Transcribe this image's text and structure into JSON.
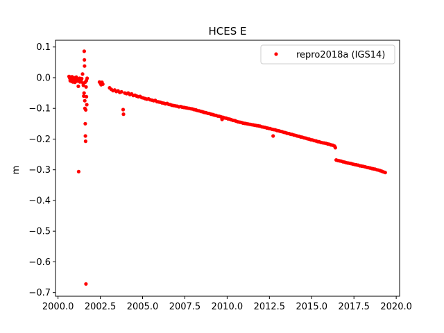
{
  "chart_data": {
    "type": "scatter",
    "title": "HCES E",
    "xlabel": "",
    "ylabel": "m",
    "xlim": [
      1999.85,
      2020.2
    ],
    "ylim": [
      -0.712,
      0.122
    ],
    "x_ticks": [
      2000.0,
      2002.5,
      2005.0,
      2007.5,
      2010.0,
      2012.5,
      2015.0,
      2017.5,
      2020.0
    ],
    "x_tick_labels": [
      "2000.0",
      "2002.5",
      "2005.0",
      "2007.5",
      "2010.0",
      "2012.5",
      "2015.0",
      "2017.5",
      "2020.0"
    ],
    "y_ticks": [
      0.1,
      0.0,
      -0.1,
      -0.2,
      -0.3,
      -0.4,
      -0.5,
      -0.6,
      -0.7
    ],
    "y_tick_labels": [
      "0.1",
      "0.0",
      "−0.1",
      "−0.2",
      "−0.3",
      "−0.4",
      "−0.5",
      "−0.6",
      "−0.7"
    ],
    "grid": false,
    "legend_position": "top-right",
    "color": "#ff0000",
    "series": [
      {
        "name": "repro2018a (IGS14)",
        "points": [
          [
            2000.65,
            0.004
          ],
          [
            2000.7,
            -0.002
          ],
          [
            2000.72,
            -0.01
          ],
          [
            2000.75,
            0.002
          ],
          [
            2000.78,
            -0.005
          ],
          [
            2000.8,
            -0.012
          ],
          [
            2000.83,
            0.003
          ],
          [
            2000.85,
            -0.008
          ],
          [
            2000.88,
            -0.014
          ],
          [
            2000.9,
            -0.002
          ],
          [
            2000.93,
            -0.01
          ],
          [
            2000.95,
            0.0
          ],
          [
            2000.98,
            -0.006
          ],
          [
            2001.0,
            -0.015
          ],
          [
            2001.03,
            -0.004
          ],
          [
            2001.05,
            -0.012
          ],
          [
            2001.08,
            0.002
          ],
          [
            2001.1,
            -0.008
          ],
          [
            2001.13,
            -0.003
          ],
          [
            2001.15,
            -0.011
          ],
          [
            2001.18,
            -0.005
          ],
          [
            2001.2,
            -0.028
          ],
          [
            2001.22,
            -0.306
          ],
          [
            2001.25,
            -0.009
          ],
          [
            2001.28,
            -0.002
          ],
          [
            2001.3,
            -0.014
          ],
          [
            2001.33,
            -0.006
          ],
          [
            2001.36,
            -0.01
          ],
          [
            2001.4,
            -0.003
          ],
          [
            2001.45,
            0.012
          ],
          [
            2001.48,
            -0.018
          ],
          [
            2001.5,
            -0.025
          ],
          [
            2001.52,
            -0.06
          ],
          [
            2001.54,
            -0.05
          ],
          [
            2001.55,
            0.086
          ],
          [
            2001.56,
            0.058
          ],
          [
            2001.57,
            0.038
          ],
          [
            2001.58,
            -0.075
          ],
          [
            2001.59,
            -0.1
          ],
          [
            2001.6,
            -0.015
          ],
          [
            2001.61,
            -0.15
          ],
          [
            2001.62,
            -0.19
          ],
          [
            2001.63,
            -0.207
          ],
          [
            2001.64,
            -0.105
          ],
          [
            2001.65,
            -0.672
          ],
          [
            2001.66,
            -0.03
          ],
          [
            2001.67,
            -0.01
          ],
          [
            2001.68,
            -0.062
          ],
          [
            2001.7,
            -0.088
          ],
          [
            2001.72,
            -0.002
          ],
          [
            2002.45,
            -0.014
          ],
          [
            2002.5,
            -0.018
          ],
          [
            2002.55,
            -0.023
          ],
          [
            2002.6,
            -0.015
          ],
          [
            2002.65,
            -0.021
          ],
          [
            2003.05,
            -0.033
          ],
          [
            2003.15,
            -0.038
          ],
          [
            2003.25,
            -0.042
          ],
          [
            2003.35,
            -0.04
          ],
          [
            2003.45,
            -0.045
          ],
          [
            2003.55,
            -0.043
          ],
          [
            2003.65,
            -0.048
          ],
          [
            2003.75,
            -0.046
          ],
          [
            2003.85,
            -0.104
          ],
          [
            2003.87,
            -0.119
          ],
          [
            2003.95,
            -0.05
          ],
          [
            2004.05,
            -0.052
          ],
          [
            2004.15,
            -0.05
          ],
          [
            2004.25,
            -0.055
          ],
          [
            2004.35,
            -0.053
          ],
          [
            2004.45,
            -0.058
          ],
          [
            2004.55,
            -0.057
          ],
          [
            2004.65,
            -0.06
          ],
          [
            2004.75,
            -0.062
          ],
          [
            2004.85,
            -0.061
          ],
          [
            2004.95,
            -0.065
          ],
          [
            2005.05,
            -0.066
          ],
          [
            2005.15,
            -0.068
          ],
          [
            2005.25,
            -0.07
          ],
          [
            2005.35,
            -0.069
          ],
          [
            2005.45,
            -0.072
          ],
          [
            2005.55,
            -0.073
          ],
          [
            2005.65,
            -0.075
          ],
          [
            2005.75,
            -0.074
          ],
          [
            2005.85,
            -0.078
          ],
          [
            2005.95,
            -0.079
          ],
          [
            2006.05,
            -0.08
          ],
          [
            2006.15,
            -0.082
          ],
          [
            2006.25,
            -0.083
          ],
          [
            2006.35,
            -0.085
          ],
          [
            2006.45,
            -0.084
          ],
          [
            2006.55,
            -0.087
          ],
          [
            2006.65,
            -0.088
          ],
          [
            2006.75,
            -0.09
          ],
          [
            2006.85,
            -0.091
          ],
          [
            2006.95,
            -0.092
          ],
          [
            2007.05,
            -0.093
          ],
          [
            2007.15,
            -0.095
          ],
          [
            2007.25,
            -0.094
          ],
          [
            2007.35,
            -0.096
          ],
          [
            2007.45,
            -0.097
          ],
          [
            2007.55,
            -0.098
          ],
          [
            2007.65,
            -0.099
          ],
          [
            2007.75,
            -0.1
          ],
          [
            2007.85,
            -0.101
          ],
          [
            2007.95,
            -0.102
          ],
          [
            2008.05,
            -0.104
          ],
          [
            2008.15,
            -0.105
          ],
          [
            2008.25,
            -0.107
          ],
          [
            2008.35,
            -0.108
          ],
          [
            2008.45,
            -0.11
          ],
          [
            2008.55,
            -0.111
          ],
          [
            2008.65,
            -0.113
          ],
          [
            2008.75,
            -0.114
          ],
          [
            2008.85,
            -0.116
          ],
          [
            2008.95,
            -0.117
          ],
          [
            2009.05,
            -0.119
          ],
          [
            2009.15,
            -0.12
          ],
          [
            2009.25,
            -0.122
          ],
          [
            2009.35,
            -0.123
          ],
          [
            2009.45,
            -0.125
          ],
          [
            2009.55,
            -0.126
          ],
          [
            2009.65,
            -0.128
          ],
          [
            2009.7,
            -0.136
          ],
          [
            2009.75,
            -0.129
          ],
          [
            2009.85,
            -0.131
          ],
          [
            2009.95,
            -0.132
          ],
          [
            2010.05,
            -0.134
          ],
          [
            2010.15,
            -0.135
          ],
          [
            2010.25,
            -0.137
          ],
          [
            2010.35,
            -0.139
          ],
          [
            2010.45,
            -0.14
          ],
          [
            2010.55,
            -0.142
          ],
          [
            2010.65,
            -0.144
          ],
          [
            2010.75,
            -0.145
          ],
          [
            2010.85,
            -0.146
          ],
          [
            2010.95,
            -0.148
          ],
          [
            2011.05,
            -0.149
          ],
          [
            2011.15,
            -0.15
          ],
          [
            2011.25,
            -0.151
          ],
          [
            2011.35,
            -0.152
          ],
          [
            2011.45,
            -0.153
          ],
          [
            2011.55,
            -0.154
          ],
          [
            2011.65,
            -0.155
          ],
          [
            2011.75,
            -0.156
          ],
          [
            2011.85,
            -0.157
          ],
          [
            2011.95,
            -0.158
          ],
          [
            2012.05,
            -0.16
          ],
          [
            2012.15,
            -0.161
          ],
          [
            2012.25,
            -0.162
          ],
          [
            2012.35,
            -0.164
          ],
          [
            2012.45,
            -0.165
          ],
          [
            2012.55,
            -0.166
          ],
          [
            2012.65,
            -0.168
          ],
          [
            2012.72,
            -0.19
          ],
          [
            2012.75,
            -0.169
          ],
          [
            2012.85,
            -0.17
          ],
          [
            2012.95,
            -0.172
          ],
          [
            2013.05,
            -0.173
          ],
          [
            2013.15,
            -0.175
          ],
          [
            2013.25,
            -0.176
          ],
          [
            2013.35,
            -0.178
          ],
          [
            2013.45,
            -0.179
          ],
          [
            2013.55,
            -0.181
          ],
          [
            2013.65,
            -0.182
          ],
          [
            2013.75,
            -0.184
          ],
          [
            2013.85,
            -0.185
          ],
          [
            2013.95,
            -0.187
          ],
          [
            2014.05,
            -0.188
          ],
          [
            2014.15,
            -0.19
          ],
          [
            2014.25,
            -0.191
          ],
          [
            2014.35,
            -0.193
          ],
          [
            2014.45,
            -0.194
          ],
          [
            2014.55,
            -0.196
          ],
          [
            2014.65,
            -0.197
          ],
          [
            2014.75,
            -0.199
          ],
          [
            2014.85,
            -0.2
          ],
          [
            2014.95,
            -0.202
          ],
          [
            2015.05,
            -0.203
          ],
          [
            2015.15,
            -0.205
          ],
          [
            2015.25,
            -0.206
          ],
          [
            2015.35,
            -0.208
          ],
          [
            2015.45,
            -0.209
          ],
          [
            2015.55,
            -0.211
          ],
          [
            2015.65,
            -0.212
          ],
          [
            2015.75,
            -0.213
          ],
          [
            2015.85,
            -0.214
          ],
          [
            2015.95,
            -0.216
          ],
          [
            2016.05,
            -0.217
          ],
          [
            2016.15,
            -0.219
          ],
          [
            2016.25,
            -0.22
          ],
          [
            2016.35,
            -0.223
          ],
          [
            2016.4,
            -0.228
          ],
          [
            2016.45,
            -0.268
          ],
          [
            2016.55,
            -0.27
          ],
          [
            2016.65,
            -0.271
          ],
          [
            2016.75,
            -0.272
          ],
          [
            2016.85,
            -0.274
          ],
          [
            2016.95,
            -0.275
          ],
          [
            2017.05,
            -0.277
          ],
          [
            2017.15,
            -0.278
          ],
          [
            2017.25,
            -0.279
          ],
          [
            2017.35,
            -0.28
          ],
          [
            2017.45,
            -0.282
          ],
          [
            2017.55,
            -0.283
          ],
          [
            2017.65,
            -0.284
          ],
          [
            2017.75,
            -0.285
          ],
          [
            2017.85,
            -0.287
          ],
          [
            2017.95,
            -0.288
          ],
          [
            2018.05,
            -0.289
          ],
          [
            2018.15,
            -0.29
          ],
          [
            2018.25,
            -0.292
          ],
          [
            2018.35,
            -0.293
          ],
          [
            2018.45,
            -0.294
          ],
          [
            2018.55,
            -0.296
          ],
          [
            2018.65,
            -0.297
          ],
          [
            2018.75,
            -0.298
          ],
          [
            2018.85,
            -0.3
          ],
          [
            2018.95,
            -0.301
          ],
          [
            2019.05,
            -0.303
          ],
          [
            2019.15,
            -0.305
          ],
          [
            2019.25,
            -0.307
          ],
          [
            2019.35,
            -0.309
          ]
        ]
      }
    ]
  }
}
